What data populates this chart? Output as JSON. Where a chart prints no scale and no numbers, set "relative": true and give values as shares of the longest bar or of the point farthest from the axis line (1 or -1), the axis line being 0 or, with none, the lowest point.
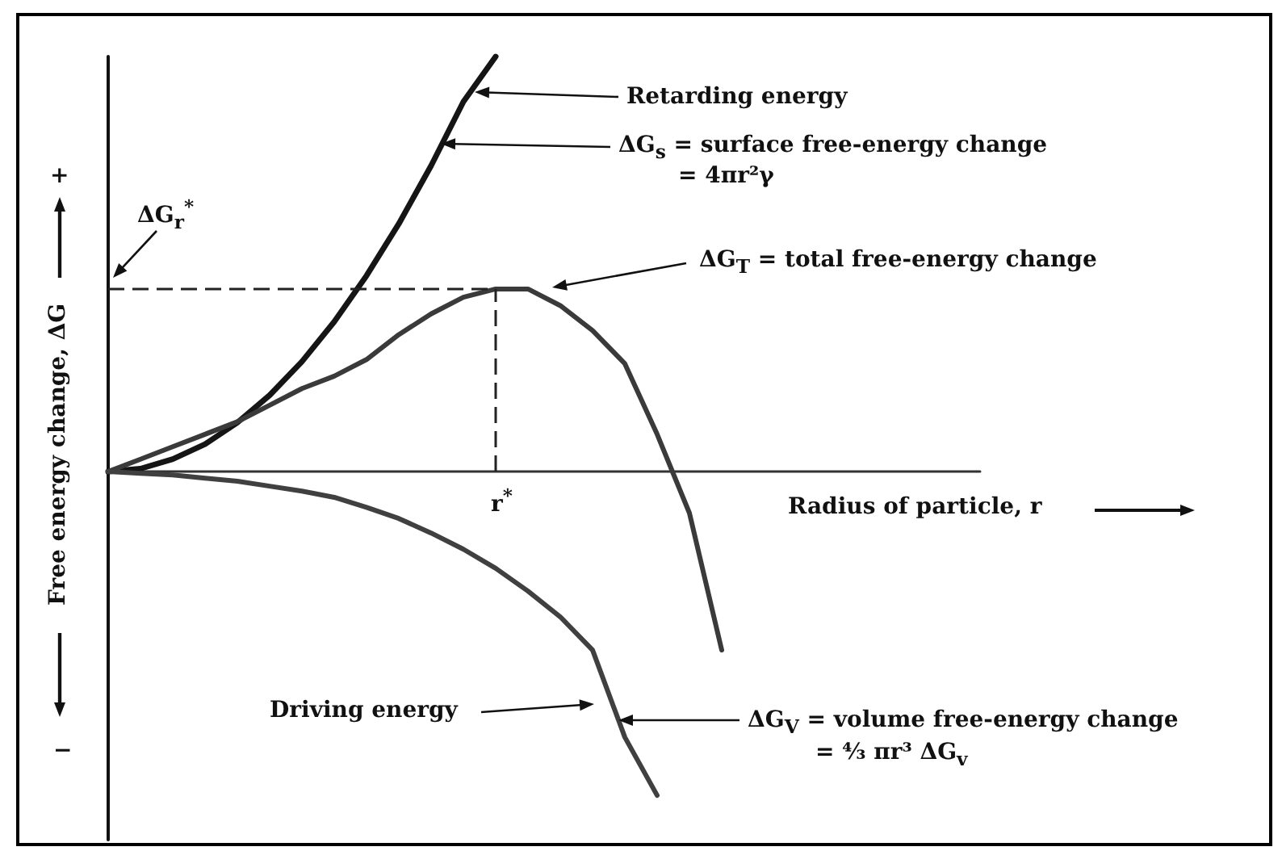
{
  "chart_data": {
    "type": "line",
    "relative": true,
    "xlabel": "Radius of particle, r",
    "ylabel": "Free energy change, ΔG",
    "categories": [
      null,
      null,
      null,
      null,
      null,
      null,
      null,
      null,
      null,
      null,
      null,
      null,
      null,
      null,
      null,
      null,
      null,
      null,
      null,
      null,
      null,
      null,
      null,
      null,
      null,
      null,
      null,
      null
    ],
    "series": [
      {
        "color": "#151515",
        "values": [
          0,
          0.007,
          0.03,
          0.066,
          0.118,
          0.184,
          0.265,
          0.361,
          0.472,
          0.597,
          0.737,
          0.891,
          1,
          null,
          null,
          null,
          null,
          null,
          null,
          null,
          null,
          null,
          null,
          null,
          null,
          null,
          null,
          null
        ]
      },
      {
        "color": "#3a3a3a",
        "values": [
          0,
          0.03,
          0.06,
          0.09,
          0.12,
          0.16,
          0.2,
          0.23,
          0.27,
          0.33,
          0.38,
          0.42,
          0.44,
          0.44,
          0.4,
          0.34,
          0.26,
          0.09,
          -0.1,
          -0.43,
          null,
          null,
          null,
          null,
          null,
          null,
          null,
          null
        ]
      },
      {
        "color": "#404040",
        "values": [
          0,
          -0.004,
          -0.008,
          -0.016,
          -0.023,
          -0.035,
          -0.047,
          -0.062,
          -0.086,
          -0.113,
          -0.148,
          -0.187,
          -0.233,
          -0.288,
          -0.35,
          -0.43,
          -0.64,
          -0.78,
          null,
          null,
          null,
          null,
          null,
          null,
          null,
          null,
          null,
          null
        ]
      }
    ],
    "ref_lines": [
      {
        "axis": "y",
        "value": 0.44,
        "label": "ΔG$_{r}$$^{*}$",
        "line_style": "dashed"
      }
    ],
    "annotations": [
      "Retarding energy",
      "ΔG$_{s}$ = surface free-energy change",
      "= 4πr²γ",
      "ΔG$_{T}$ = total free-energy change",
      "Driving energy",
      "ΔG$_{V}$ = volume free-energy change",
      "= ⁴⁄₃ πr³ ΔG$_{v}$",
      "+",
      "−",
      "r$^{*}$"
    ]
  }
}
